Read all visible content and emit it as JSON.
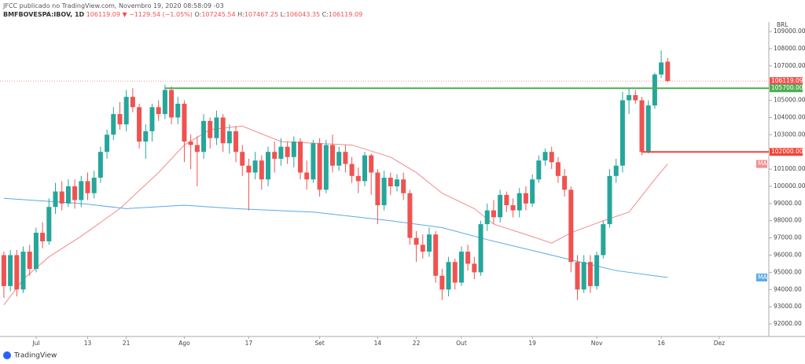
{
  "header": {
    "published": "JFCC publicado no TradingView.com, Novembro 19, 2020 08:58:09 -03",
    "symbol": "BMFBOVESPA:IBOV, 1D",
    "change": "▼ −1129.54 (−1.05%)",
    "o_label": "O:",
    "h_label": "H:",
    "l_label": "L:",
    "c_label": "C:",
    "currency": "BRL",
    "brand": "TradingView"
  },
  "chart_data": {
    "type": "candlestick",
    "open": [
      96000,
      94200,
      96000,
      94000,
      96200,
      95200,
      97300,
      96800,
      98800,
      99700,
      99000,
      100000,
      99200,
      100300,
      99600,
      100500,
      102000,
      103000,
      104200,
      103600,
      105200,
      104600,
      102600,
      103200,
      104600,
      104200,
      105600,
      104000,
      104800,
      102600,
      102400,
      102000,
      103800,
      102800,
      104000,
      102500,
      103200,
      102000,
      101200,
      100800,
      101500,
      100400,
      102000,
      101600,
      102300,
      101700,
      102600,
      100800,
      100400,
      102500,
      99800,
      102400,
      101200,
      102000,
      101300,
      100600,
      100300,
      101800,
      100800,
      98900,
      100500,
      100000,
      100400,
      99600,
      97000,
      96600,
      96200,
      97200,
      94800,
      94000,
      95600,
      94400,
      96200,
      95500,
      95000,
      97800,
      98600,
      98200,
      99500,
      98900,
      98600,
      99600,
      99000,
      100400,
      101500,
      102000,
      101400,
      100600,
      99800,
      95600,
      94000,
      95600,
      94200,
      96000,
      97800,
      100600,
      101200,
      105000,
      105300,
      105000,
      102000,
      104700,
      106500,
      107245.54
    ],
    "high": [
      96200,
      96300,
      96300,
      96500,
      96600,
      97600,
      97900,
      99300,
      100200,
      100300,
      100400,
      100400,
      100600,
      100800,
      100900,
      102300,
      103300,
      104600,
      104900,
      105600,
      105700,
      104800,
      103600,
      104800,
      105000,
      105900,
      105800,
      105200,
      105000,
      103000,
      102900,
      104200,
      104000,
      104400,
      104200,
      103600,
      103500,
      102400,
      101600,
      102000,
      101800,
      102300,
      102600,
      102800,
      102600,
      102900,
      102800,
      101500,
      102700,
      102800,
      102700,
      103000,
      102300,
      102400,
      101700,
      101100,
      102000,
      101900,
      101000,
      100900,
      100800,
      100700,
      100800,
      99800,
      97400,
      97200,
      97600,
      97400,
      95200,
      95900,
      95800,
      96500,
      96600,
      95900,
      98000,
      99000,
      99200,
      99800,
      99700,
      99300,
      99900,
      100000,
      100700,
      101800,
      102200,
      102300,
      101700,
      101000,
      100000,
      96000,
      96000,
      96000,
      96200,
      98000,
      101000,
      101600,
      105500,
      105700,
      105600,
      105200,
      105000,
      106600,
      107900,
      107467.25
    ],
    "low": [
      93500,
      93900,
      93600,
      93800,
      94800,
      95000,
      96400,
      96600,
      98400,
      98600,
      98800,
      98700,
      98800,
      99200,
      99300,
      100200,
      101600,
      102700,
      103300,
      103200,
      104300,
      102200,
      101600,
      102600,
      103800,
      103900,
      103600,
      103600,
      101400,
      101000,
      100000,
      101600,
      102200,
      102400,
      102000,
      101900,
      101400,
      100600,
      98600,
      100400,
      99800,
      100000,
      100800,
      101200,
      101300,
      101100,
      100400,
      99800,
      100200,
      99400,
      99600,
      100800,
      100900,
      100800,
      100200,
      99600,
      100000,
      99500,
      97800,
      98600,
      99500,
      99700,
      99200,
      96600,
      95600,
      95800,
      95900,
      94400,
      93400,
      93600,
      94000,
      94200,
      95100,
      94600,
      94800,
      97400,
      97800,
      97900,
      98500,
      98200,
      98200,
      98600,
      98800,
      100200,
      101200,
      101000,
      100200,
      99400,
      95000,
      93400,
      93800,
      93800,
      94000,
      95800,
      97600,
      100200,
      100800,
      104200,
      104800,
      101800,
      101900,
      104500,
      106300,
      106043.35
    ],
    "close": [
      94200,
      96000,
      94000,
      96200,
      95200,
      97300,
      96800,
      98800,
      99700,
      99000,
      100000,
      99200,
      100300,
      99600,
      100500,
      102000,
      103000,
      104200,
      103600,
      105200,
      104600,
      102600,
      103200,
      104600,
      104200,
      105600,
      104000,
      104800,
      102600,
      102400,
      102000,
      103800,
      102800,
      104000,
      102500,
      103200,
      102000,
      101200,
      100800,
      101500,
      100400,
      102000,
      101600,
      102300,
      101700,
      102600,
      100800,
      100400,
      102500,
      99800,
      102400,
      101200,
      102000,
      101300,
      100600,
      100300,
      101800,
      100800,
      98900,
      100500,
      100000,
      100400,
      99600,
      97000,
      96600,
      96200,
      97200,
      94800,
      94000,
      95600,
      94400,
      96200,
      95500,
      95000,
      97800,
      98600,
      98200,
      99500,
      98900,
      98600,
      99600,
      99000,
      100400,
      101500,
      102000,
      101400,
      100600,
      99800,
      95600,
      94000,
      95600,
      94200,
      96000,
      97800,
      100600,
      101200,
      105000,
      105300,
      105000,
      102000,
      104700,
      106500,
      107200,
      106119.09
    ],
    "up_color": "#26a69a",
    "down_color": "#ef5350",
    "lines": [
      {
        "label": "MA",
        "color": "#f28b8b",
        "x": [
          0,
          3,
          7,
          12,
          18,
          24,
          28,
          32,
          37,
          43,
          54,
          60,
          64,
          68,
          73,
          76,
          81,
          85,
          88,
          93,
          97,
          101,
          103
        ],
        "values": [
          93100,
          94600,
          95900,
          97100,
          98700,
          100800,
          102400,
          103300,
          103500,
          102600,
          102400,
          101700,
          100800,
          99600,
          98700,
          97800,
          97200,
          96700,
          97300,
          98000,
          98500,
          100400,
          101300
        ]
      },
      {
        "label": "MA",
        "color": "#5aa9e6",
        "x": [
          0,
          12,
          19,
          28,
          36,
          48,
          60,
          68,
          75,
          85,
          95,
          103
        ],
        "values": [
          99300,
          99000,
          98700,
          98900,
          98700,
          98500,
          98000,
          97600,
          96900,
          96000,
          95100,
          94700
        ]
      }
    ],
    "levels": [
      {
        "value": 105700,
        "label": "105700.00",
        "color": "#4caf50",
        "from": 25
      },
      {
        "value": 102000,
        "label": "102000.00",
        "color": "#f44336",
        "from": 99
      }
    ],
    "xlim": [
      -0.6,
      118.7
    ],
    "ylim": [
      91270,
      109550
    ],
    "xticks": [
      {
        "value": 5,
        "label": "Jul"
      },
      {
        "value": 13,
        "label": "13"
      },
      {
        "value": 19,
        "label": "21"
      },
      {
        "value": 28,
        "label": "Ago"
      },
      {
        "value": 38,
        "label": "17"
      },
      {
        "value": 49,
        "label": "Set"
      },
      {
        "value": 58,
        "label": "14"
      },
      {
        "value": 64,
        "label": "22"
      },
      {
        "value": 71,
        "label": "Out"
      },
      {
        "value": 82,
        "label": "19"
      },
      {
        "value": 92,
        "label": "Nov"
      },
      {
        "value": 102,
        "label": "16"
      },
      {
        "value": 111,
        "label": "Dez"
      }
    ],
    "yticks": [
      {
        "value": 92000,
        "label": "92000.00"
      },
      {
        "value": 93000,
        "label": "93000.00"
      },
      {
        "value": 94000,
        "label": "94000.00"
      },
      {
        "value": 95000,
        "label": "95000.00"
      },
      {
        "value": 96000,
        "label": "96000.00"
      },
      {
        "value": 97000,
        "label": "97000.00"
      },
      {
        "value": 98000,
        "label": "98000.00"
      },
      {
        "value": 99000,
        "label": "99000.00"
      },
      {
        "value": 100000,
        "label": "100000.00"
      },
      {
        "value": 101000,
        "label": "101000.00"
      },
      {
        "value": 103000,
        "label": "103000.00"
      },
      {
        "value": 104000,
        "label": "104000.00"
      },
      {
        "value": 105000,
        "label": "105000.00"
      },
      {
        "value": 107000,
        "label": "107000.00"
      },
      {
        "value": 108000,
        "label": "108000.00"
      },
      {
        "value": 109000,
        "label": "109000.00"
      }
    ],
    "grid": false
  }
}
